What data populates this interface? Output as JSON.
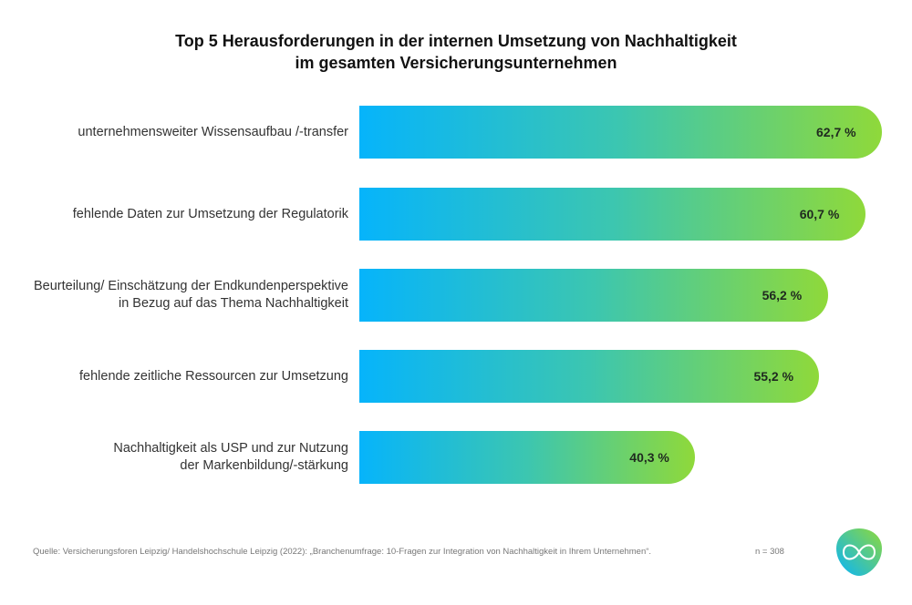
{
  "chart_data": {
    "type": "bar",
    "orientation": "horizontal",
    "title": [
      "Top 5 Herausforderungen in der internen Umsetzung von Nachhaltigkeit",
      "im gesamten Versicherungsunternehmen"
    ],
    "categories": [
      [
        "unternehmensweiter Wissensaufbau /-transfer"
      ],
      [
        "fehlende Daten zur Umsetzung der Regulatorik"
      ],
      [
        "Beurteilung/ Einschätzung der Endkundenperspektive",
        "in Bezug auf das Thema Nachhaltigkeit"
      ],
      [
        "fehlende zeitliche Ressourcen zur Umsetzung"
      ],
      [
        "Nachhaltigkeit als USP und zur Nutzung",
        "der Markenbildung/-stärkung"
      ]
    ],
    "values": [
      62.7,
      60.7,
      56.2,
      55.2,
      40.3
    ],
    "value_labels": [
      "62,7 %",
      "60,7 %",
      "56,2 %",
      "55,2 %",
      "40,3 %"
    ],
    "gradient": [
      "#06b4fb",
      "#3cc6b0",
      "#8fd93a"
    ],
    "grid": false,
    "axes_visible": false
  },
  "footer": {
    "source": "Quelle: Versicherungsforen Leipzig/ Handelshochschule Leipzig (2022): „Branchenumfrage: 10-Fragen zur Integration von Nachhaltigkeit in Ihrem Unternehmen“.",
    "n": "n = 308"
  }
}
